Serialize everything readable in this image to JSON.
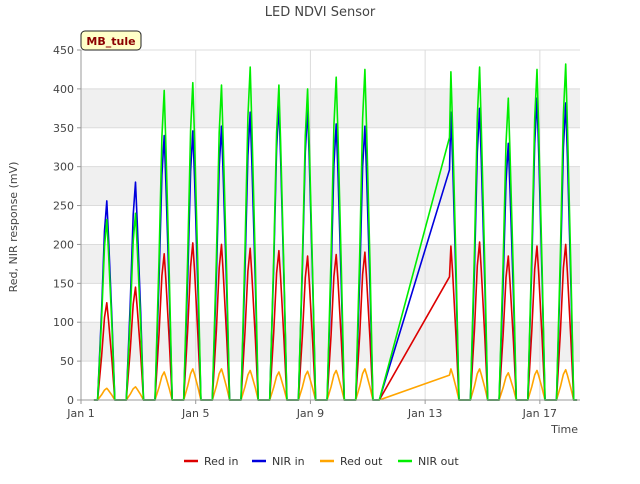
{
  "chart_data": {
    "type": "line",
    "title": "LED NDVI Sensor",
    "badge": "MB_tule",
    "xlabel": "Time",
    "ylabel": "Red, NIR response (mV)",
    "xlim": [
      "Jan 1",
      "Jan 18.4"
    ],
    "ylim": [
      0,
      450
    ],
    "x_ticks": [
      {
        "day": 1,
        "label": "Jan 1"
      },
      {
        "day": 5,
        "label": "Jan 5"
      },
      {
        "day": 9,
        "label": "Jan 9"
      },
      {
        "day": 13,
        "label": "Jan 13"
      },
      {
        "day": 17,
        "label": "Jan 17"
      }
    ],
    "y_ticks": [
      0,
      50,
      100,
      150,
      200,
      250,
      300,
      350,
      400,
      450
    ],
    "grid": true,
    "alternating_bands": true,
    "legend_position": "bottom",
    "series": [
      {
        "name": "Red in",
        "color": "#dd0000",
        "peaks": [
          [
            1.9,
            125
          ],
          [
            2.9,
            145
          ],
          [
            3.9,
            188
          ],
          [
            4.9,
            202
          ],
          [
            5.9,
            200
          ],
          [
            6.9,
            195
          ],
          [
            7.9,
            192
          ],
          [
            8.9,
            185
          ],
          [
            9.9,
            187
          ],
          [
            10.9,
            190
          ],
          [
            13.9,
            198
          ],
          [
            14.9,
            203
          ],
          [
            15.9,
            185
          ],
          [
            16.9,
            198
          ],
          [
            17.9,
            200
          ]
        ]
      },
      {
        "name": "NIR in",
        "color": "#0000dd",
        "peaks": [
          [
            1.9,
            256
          ],
          [
            2.9,
            280
          ],
          [
            3.9,
            340
          ],
          [
            4.9,
            346
          ],
          [
            5.9,
            352
          ],
          [
            6.9,
            370
          ],
          [
            7.9,
            380
          ],
          [
            8.9,
            375
          ],
          [
            9.9,
            355
          ],
          [
            10.9,
            352
          ],
          [
            13.9,
            370
          ],
          [
            14.9,
            375
          ],
          [
            15.9,
            330
          ],
          [
            16.9,
            388
          ],
          [
            17.9,
            382
          ]
        ]
      },
      {
        "name": "Red out",
        "color": "#ffa500",
        "peaks": [
          [
            1.9,
            15
          ],
          [
            2.9,
            17
          ],
          [
            3.9,
            36
          ],
          [
            4.9,
            40
          ],
          [
            5.9,
            40
          ],
          [
            6.9,
            38
          ],
          [
            7.9,
            36
          ],
          [
            8.9,
            37
          ],
          [
            9.9,
            38
          ],
          [
            10.9,
            40
          ],
          [
            13.9,
            40
          ],
          [
            14.9,
            40
          ],
          [
            15.9,
            35
          ],
          [
            16.9,
            38
          ],
          [
            17.9,
            39
          ]
        ]
      },
      {
        "name": "NIR out",
        "color": "#00ee00",
        "peaks": [
          [
            1.9,
            232
          ],
          [
            2.9,
            240
          ],
          [
            3.9,
            398
          ],
          [
            4.9,
            408
          ],
          [
            5.9,
            405
          ],
          [
            6.9,
            428
          ],
          [
            7.9,
            405
          ],
          [
            8.9,
            400
          ],
          [
            9.9,
            415
          ],
          [
            10.9,
            425
          ],
          [
            13.9,
            422
          ],
          [
            14.9,
            428
          ],
          [
            15.9,
            388
          ],
          [
            16.9,
            425
          ],
          [
            17.9,
            432
          ]
        ]
      }
    ]
  }
}
